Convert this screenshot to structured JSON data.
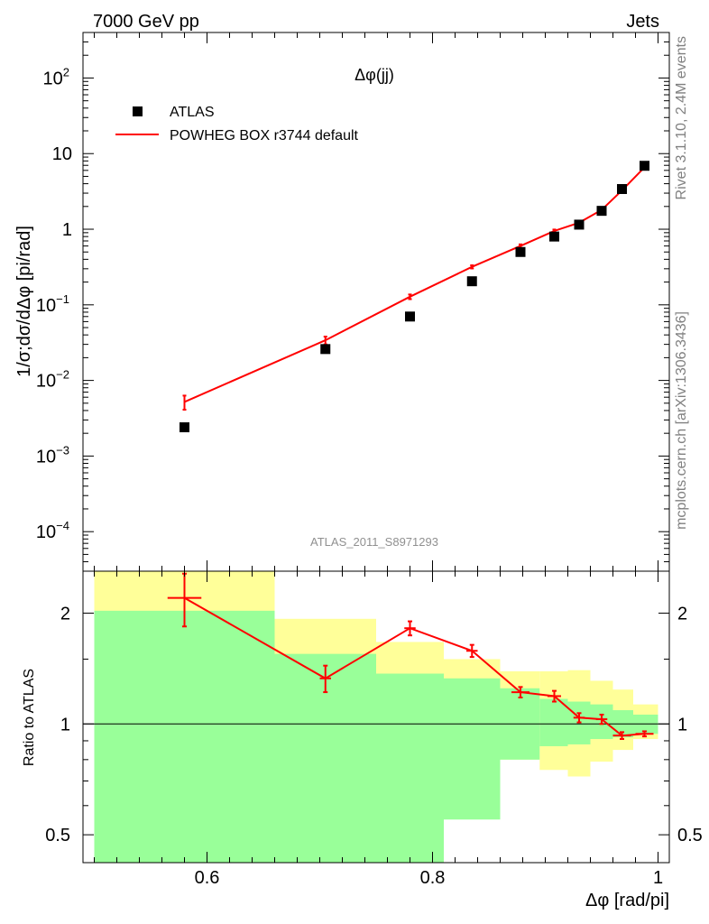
{
  "header": {
    "left": "7000 GeV pp",
    "right": "Jets"
  },
  "side_text": {
    "top": "Rivet 3.1.10,  2.4M events",
    "bottom": "mcplots.cern.ch [arXiv:1306.3436]"
  },
  "analysis_ref": "ATLAS_2011_S8971293",
  "colors": {
    "mc": "#ff0000",
    "data": "#000000",
    "band_inner": "#99ff99",
    "band_outer": "#ffff99"
  },
  "chart_data": [
    {
      "type": "scatter",
      "title": "Δφ(jj)",
      "ylabel": "1/σ;dσ/dΔφ [pi/rad]",
      "yscale": "log",
      "xlim": [
        0.49,
        1.01
      ],
      "ylim": [
        3e-05,
        400
      ],
      "yticks": [
        {
          "value": 100,
          "base": "10",
          "exp": "2"
        },
        {
          "value": 10,
          "base": "10",
          "exp": ""
        },
        {
          "value": 1,
          "base": "1",
          "exp": ""
        },
        {
          "value": 0.1,
          "base": "10",
          "exp": "−1"
        },
        {
          "value": 0.01,
          "base": "10",
          "exp": "−2"
        },
        {
          "value": 0.001,
          "base": "10",
          "exp": "−3"
        },
        {
          "value": 0.0001,
          "base": "10",
          "exp": "−4"
        }
      ],
      "legend": {
        "placement": "top-left",
        "entries": [
          {
            "label": "ATLAS",
            "kind": "marker"
          },
          {
            "label": "POWHEG BOX r3744 default",
            "kind": "line"
          }
        ]
      },
      "series": [
        {
          "name": "ATLAS",
          "x": [
            0.58,
            0.705,
            0.78,
            0.835,
            0.878,
            0.908,
            0.93,
            0.95,
            0.968,
            0.988
          ],
          "y": [
            0.0024,
            0.026,
            0.07,
            0.205,
            0.5,
            0.8,
            1.15,
            1.75,
            3.4,
            6.9
          ]
        },
        {
          "name": "POWHEG BOX r3744 default",
          "x": [
            0.58,
            0.705,
            0.78,
            0.835,
            0.878,
            0.908,
            0.93,
            0.95,
            0.968,
            0.988
          ],
          "y": [
            0.0052,
            0.034,
            0.128,
            0.318,
            0.6,
            0.95,
            1.22,
            1.8,
            3.25,
            6.6
          ],
          "yerr": [
            0.0011,
            0.004,
            0.009,
            0.015,
            0.03,
            0.04,
            0.05,
            0.07,
            0.1,
            0.12
          ]
        }
      ]
    },
    {
      "type": "line",
      "ylabel": "Ratio to ATLAS",
      "xlabel": "Δφ [rad/pi]",
      "yscale": "log",
      "xlim": [
        0.49,
        1.01
      ],
      "ylim": [
        0.42,
        2.6
      ],
      "xticks": [
        {
          "value": 0.6,
          "label": "0.6"
        },
        {
          "value": 0.8,
          "label": "0.8"
        },
        {
          "value": 1.0,
          "label": "1"
        }
      ],
      "yticks": [
        {
          "value": 2,
          "label": "2"
        },
        {
          "value": 1,
          "label": "1"
        },
        {
          "value": 0.5,
          "label": "0.5"
        }
      ],
      "reference_line": 1,
      "bands": [
        {
          "x0": 0.5,
          "x1": 0.66,
          "inner": [
            0.4,
            2.03
          ],
          "outer": [
            0.4,
            2.9
          ]
        },
        {
          "x0": 0.66,
          "x1": 0.75,
          "inner": [
            0.4,
            1.55
          ],
          "outer": [
            0.55,
            1.93
          ]
        },
        {
          "x0": 0.75,
          "x1": 0.81,
          "inner": [
            0.4,
            1.37
          ],
          "outer": [
            0.74,
            1.67
          ]
        },
        {
          "x0": 0.81,
          "x1": 0.86,
          "inner": [
            0.55,
            1.33
          ],
          "outer": [
            0.82,
            1.5
          ]
        },
        {
          "x0": 0.86,
          "x1": 0.895,
          "inner": [
            0.8,
            1.25
          ],
          "outer": [
            0.8,
            1.39
          ]
        },
        {
          "x0": 0.895,
          "x1": 0.92,
          "inner": [
            0.87,
            1.17
          ],
          "outer": [
            0.75,
            1.39
          ]
        },
        {
          "x0": 0.92,
          "x1": 0.94,
          "inner": [
            0.88,
            1.15
          ],
          "outer": [
            0.72,
            1.4
          ]
        },
        {
          "x0": 0.94,
          "x1": 0.96,
          "inner": [
            0.91,
            1.13
          ],
          "outer": [
            0.79,
            1.31
          ]
        },
        {
          "x0": 0.96,
          "x1": 0.978,
          "inner": [
            0.92,
            1.09
          ],
          "outer": [
            0.85,
            1.24
          ]
        },
        {
          "x0": 0.978,
          "x1": 1.0,
          "inner": [
            0.94,
            1.06
          ],
          "outer": [
            0.91,
            1.13
          ]
        }
      ],
      "series": [
        {
          "name": "POWHEG BOX r3744 default",
          "x": [
            0.58,
            0.705,
            0.78,
            0.835,
            0.878,
            0.908,
            0.93,
            0.95,
            0.968,
            0.988
          ],
          "y": [
            2.2,
            1.33,
            1.82,
            1.58,
            1.22,
            1.19,
            1.04,
            1.03,
            0.93,
            0.94
          ],
          "yerr": [
            0.36,
            0.11,
            0.08,
            0.06,
            0.04,
            0.04,
            0.03,
            0.03,
            0.02,
            0.015
          ],
          "xbins": [
            [
              0.565,
              0.595
            ],
            [
              0.7,
              0.71
            ],
            [
              0.775,
              0.785
            ],
            [
              0.83,
              0.84
            ],
            [
              0.87,
              0.886
            ],
            [
              0.902,
              0.914
            ],
            [
              0.925,
              0.935
            ],
            [
              0.945,
              0.955
            ],
            [
              0.96,
              0.976
            ],
            [
              0.98,
              0.996
            ]
          ]
        }
      ]
    }
  ]
}
